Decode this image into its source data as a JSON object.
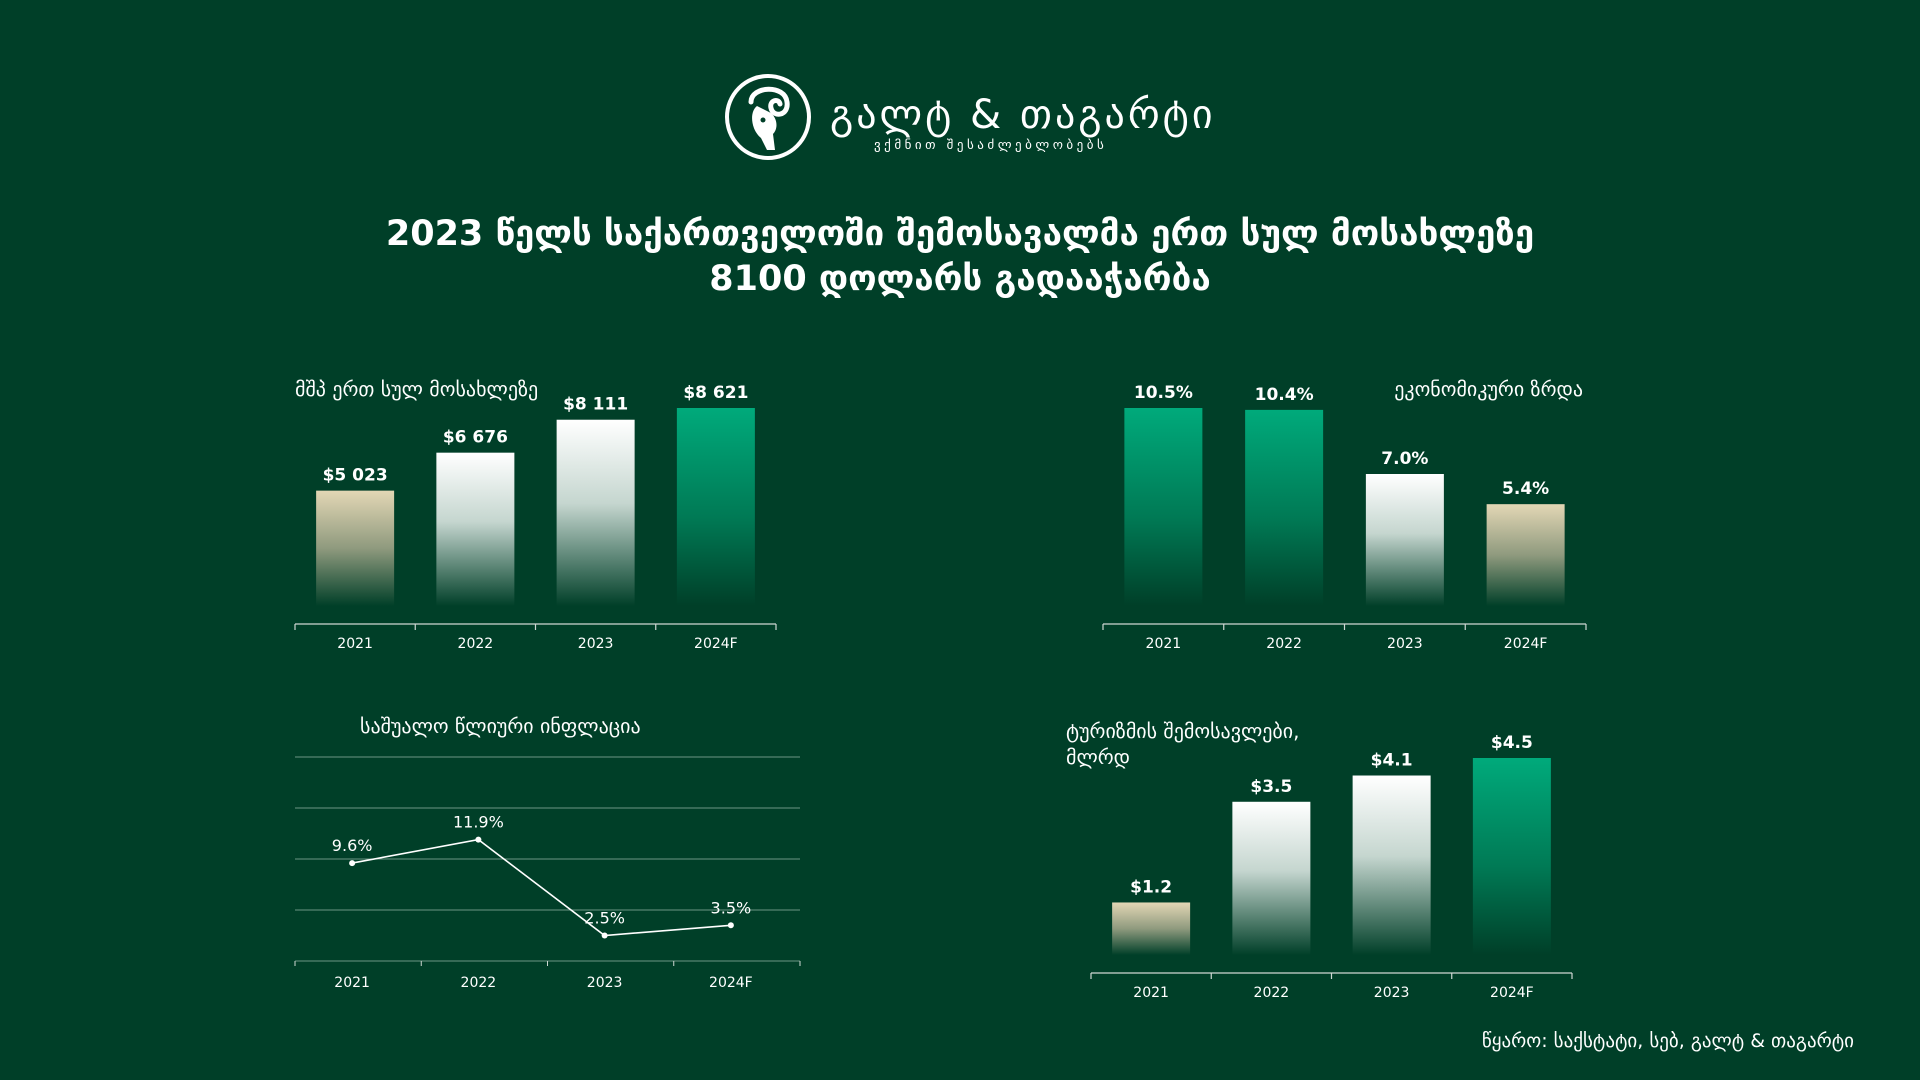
{
  "logo": {
    "name": "გალტ & თაგარტი",
    "tagline": "ვქმნით შესაძლებლობებს",
    "icon": "ram-head-icon"
  },
  "headline": {
    "line1": "2023 წელს საქართველოში შემოსავალმა ერთ სულ მოსახლეზე",
    "line2": "8100 დოლარს გადააჭარბა"
  },
  "colors": {
    "background": "#003f28",
    "accent_green": "#00a87a",
    "beige": "#d9ceac",
    "white": "#ffffff",
    "gridline": "#5f8a78"
  },
  "chart_data": [
    {
      "id": "gdp",
      "type": "bar",
      "title": "მშპ ერთ სულ მოსახლეზე",
      "categories": [
        "2021",
        "2022",
        "2023",
        "2024F"
      ],
      "values": [
        5023,
        6676,
        8111,
        8621
      ],
      "value_labels": [
        "$5 023",
        "$6 676",
        "$8 111",
        "$8 621"
      ],
      "bar_styles": [
        "beige",
        "white",
        "white",
        "green"
      ],
      "ylim": [
        0,
        10000
      ]
    },
    {
      "id": "growth",
      "type": "bar",
      "title": "ეკონომიკური ზრდა",
      "categories": [
        "2021",
        "2022",
        "2023",
        "2024F"
      ],
      "values": [
        10.5,
        10.4,
        7.0,
        5.4
      ],
      "value_labels": [
        "10.5%",
        "10.4%",
        "7.0%",
        "5.4%"
      ],
      "bar_styles": [
        "green",
        "green",
        "white",
        "beige"
      ],
      "ylim": [
        0,
        12
      ]
    },
    {
      "id": "inflation",
      "type": "line",
      "title": "საშუალო წლიური ინფლაცია",
      "categories": [
        "2021",
        "2022",
        "2023",
        "2024F"
      ],
      "values": [
        9.6,
        11.9,
        2.5,
        3.5
      ],
      "value_labels": [
        "9.6%",
        "11.9%",
        "2.5%",
        "3.5%"
      ],
      "ylim": [
        0,
        20
      ],
      "grid": true
    },
    {
      "id": "tourism",
      "type": "bar",
      "title": [
        "ტურიზმის შემოსავლები,",
        "მლრდ"
      ],
      "categories": [
        "2021",
        "2022",
        "2023",
        "2024F"
      ],
      "values": [
        1.2,
        3.5,
        4.1,
        4.5
      ],
      "value_labels": [
        "$1.2",
        "$3.5",
        "$4.1",
        "$4.5"
      ],
      "bar_styles": [
        "beige",
        "white",
        "white",
        "green"
      ],
      "ylim": [
        0,
        5
      ]
    }
  ],
  "source": "წყარო: საქსტატი, სებ, გალტ & თაგარტი"
}
